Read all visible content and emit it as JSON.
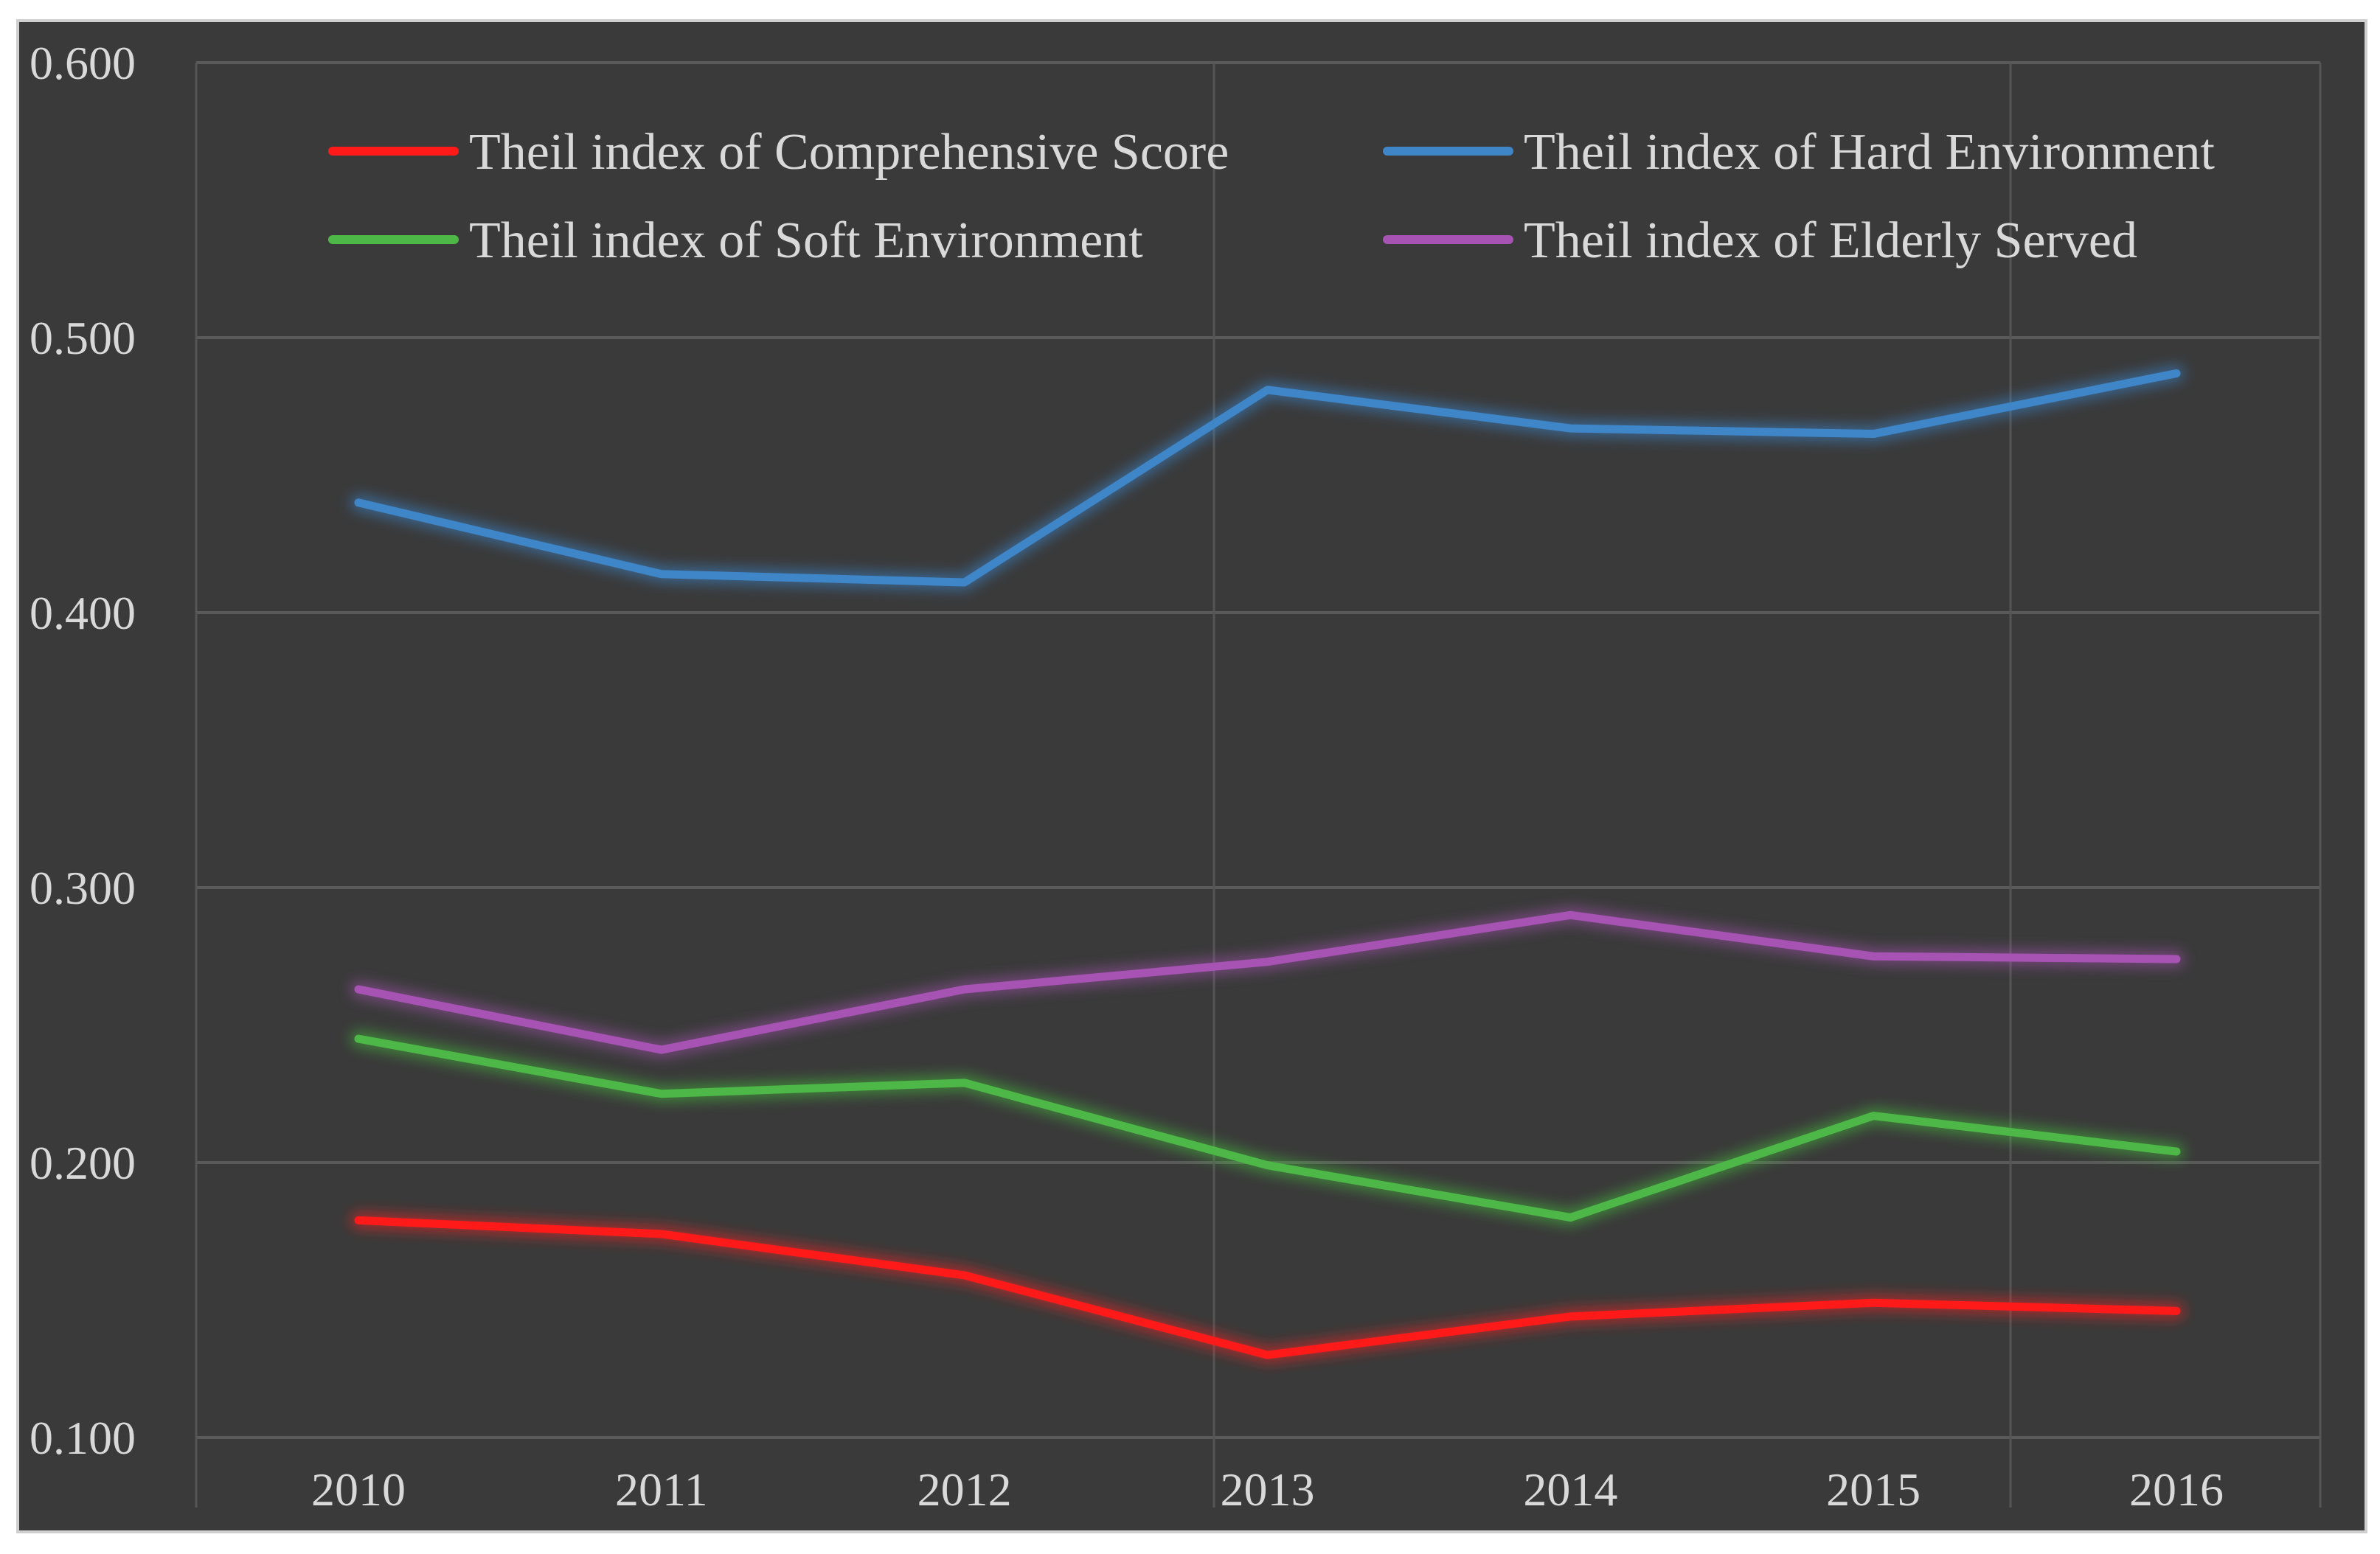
{
  "chart_data": {
    "type": "line",
    "title": "",
    "xlabel": "",
    "ylabel": "",
    "categories": [
      "2010",
      "2011",
      "2012",
      "2013",
      "2014",
      "2015",
      "2016"
    ],
    "ylim": [
      0.1,
      0.6
    ],
    "yticks": [
      "0.100",
      "0.200",
      "0.300",
      "0.400",
      "0.500",
      "0.600"
    ],
    "grid": true,
    "legend_position": "top",
    "series": [
      {
        "name": "Theil index of Comprehensive Score",
        "color": "#ff1a1a",
        "glow": "#ff2020",
        "values": [
          0.179,
          0.174,
          0.159,
          0.13,
          0.144,
          0.149,
          0.146
        ]
      },
      {
        "name": "Theil index of Hard Environment",
        "color": "#3f86c8",
        "glow": "#3a8ad6",
        "values": [
          0.44,
          0.414,
          0.411,
          0.481,
          0.467,
          0.465,
          0.487
        ]
      },
      {
        "name": "Theil index of Soft Environment",
        "color": "#4db848",
        "glow": "#44c23a",
        "values": [
          0.245,
          0.225,
          0.229,
          0.199,
          0.18,
          0.217,
          0.204
        ]
      },
      {
        "name": "Theil index of Elderly Served",
        "color": "#a653b3",
        "glow": "#a653b3",
        "values": [
          0.263,
          0.241,
          0.263,
          0.273,
          0.29,
          0.275,
          0.274
        ]
      }
    ]
  }
}
